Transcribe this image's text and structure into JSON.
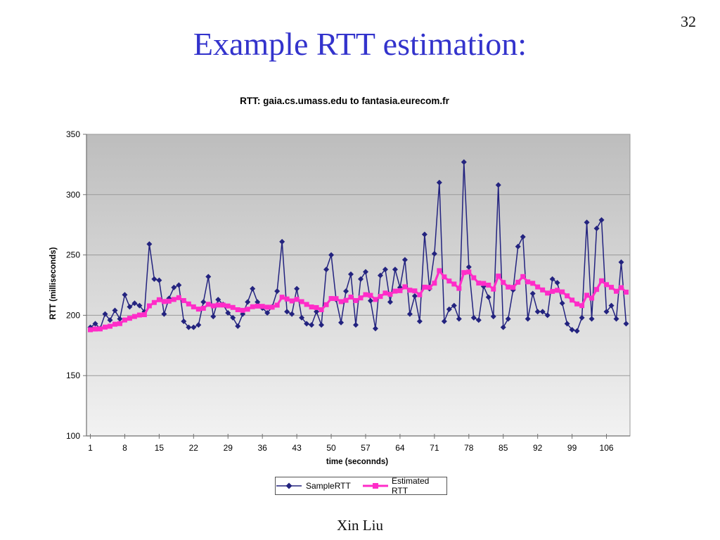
{
  "slide": {
    "page_number": "32",
    "title": "Example RTT estimation:",
    "title_color": "#3333CC",
    "footer": "Xin Liu"
  },
  "chart_data": {
    "type": "line",
    "title": "RTT: gaia.cs.umass.edu to fantasia.eurecom.fr",
    "xlabel": "time (seconnds)",
    "ylabel": "RTT (milliseconds)",
    "ylim": [
      100,
      350
    ],
    "y_ticks": [
      100,
      150,
      200,
      250,
      300,
      350
    ],
    "x_ticks": [
      1,
      8,
      15,
      22,
      29,
      36,
      43,
      50,
      57,
      64,
      71,
      78,
      85,
      92,
      99,
      106
    ],
    "grid": true,
    "legend_position": "bottom",
    "plot_bg_top": "#BDBDBD",
    "plot_bg_bottom": "#F2F2F2",
    "gridline_color": "#999999",
    "axis_color": "#707070",
    "series": [
      {
        "name": "SampleRTT",
        "marker": "diamond",
        "color": "#23237F",
        "values": [
          190,
          193,
          189,
          201,
          196,
          204,
          197,
          217,
          207,
          210,
          208,
          203,
          259,
          230,
          229,
          201,
          214,
          223,
          225,
          195,
          190,
          190,
          192,
          211,
          232,
          199,
          213,
          209,
          202,
          198,
          191,
          201,
          211,
          222,
          211,
          206,
          202,
          207,
          220,
          261,
          203,
          201,
          222,
          198,
          193,
          192,
          203,
          192,
          238,
          250,
          213,
          194,
          220,
          234,
          192,
          230,
          236,
          212,
          189,
          233,
          238,
          211,
          238,
          223,
          246,
          201,
          216,
          195,
          267,
          222,
          251,
          310,
          195,
          205,
          208,
          197,
          327,
          240,
          198,
          196,
          224,
          215,
          199,
          308,
          190,
          197,
          221,
          257,
          265,
          197,
          218,
          203,
          203,
          200,
          230,
          227,
          210,
          193,
          188,
          187,
          198,
          277,
          197,
          272,
          279,
          203,
          208,
          197,
          244,
          193
        ]
      },
      {
        "name": "Estimated RTT",
        "marker": "square",
        "color": "#FF2CC8",
        "values": [
          188.0,
          188.6,
          188.7,
          190.2,
          190.9,
          192.6,
          193.1,
          196.1,
          197.5,
          199.0,
          200.2,
          200.5,
          207.8,
          210.6,
          212.9,
          211.4,
          211.7,
          213.1,
          214.6,
          212.2,
          209.4,
          207.0,
          205.1,
          205.8,
          209.1,
          207.8,
          208.5,
          208.5,
          207.7,
          206.5,
          204.6,
          204.1,
          205.0,
          207.1,
          207.6,
          207.4,
          206.7,
          206.7,
          208.4,
          215.0,
          213.5,
          211.9,
          213.2,
          211.3,
          209.0,
          206.9,
          206.4,
          204.6,
          208.8,
          213.9,
          213.8,
          211.3,
          212.4,
          215.1,
          212.2,
          214.4,
          217.1,
          216.5,
          213.1,
          215.6,
          218.4,
          217.4,
          220.0,
          220.4,
          223.6,
          220.8,
          220.2,
          217.0,
          223.3,
          223.1,
          226.6,
          237.0,
          231.8,
          228.4,
          225.9,
          222.3,
          235.4,
          235.9,
          231.1,
          226.7,
          226.4,
          225.0,
          221.7,
          232.5,
          227.2,
          223.4,
          223.1,
          227.4,
          232.1,
          227.7,
          226.5,
          223.5,
          221.0,
          218.4,
          219.8,
          220.7,
          219.4,
          216.1,
          212.6,
          209.4,
          208.0,
          216.6,
          214.2,
          221.4,
          228.6,
          225.4,
          223.2,
          219.9,
          222.9,
          219.2
        ]
      }
    ]
  }
}
